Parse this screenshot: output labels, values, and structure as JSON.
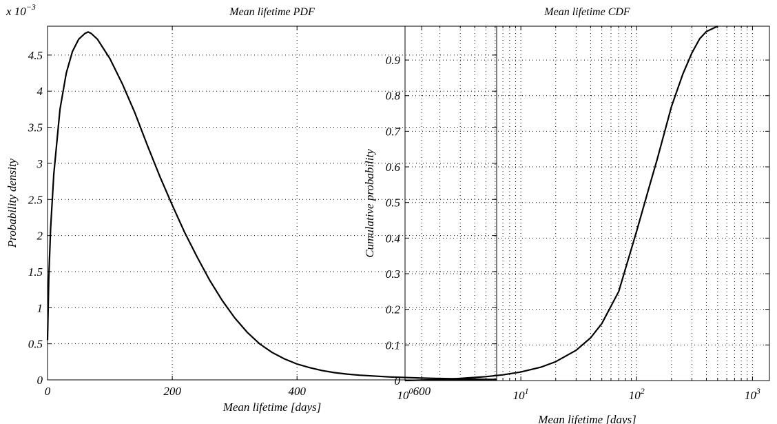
{
  "chart_data": [
    {
      "type": "line",
      "title": "Mean lifetime PDF",
      "xlabel": "Mean lifetime [days]",
      "ylabel": "Probability density",
      "y_multiplier": "x 10",
      "y_multiplier_exp": "−3",
      "xlim": [
        0,
        720
      ],
      "ylim": [
        0,
        4.9
      ],
      "xticks": [
        0,
        200,
        400,
        600
      ],
      "yticks": [
        0,
        0.5,
        1,
        1.5,
        2,
        2.5,
        3,
        3.5,
        4,
        4.5
      ],
      "ytick_labels": [
        "0",
        "0.5",
        "1",
        "1.5",
        "2",
        "2.5",
        "3",
        "3.5",
        "4",
        "4.5"
      ],
      "grid": true,
      "series": [
        {
          "x": [
            0,
            2,
            5,
            10,
            20,
            30,
            40,
            50,
            60,
            65,
            70,
            80,
            100,
            120,
            140,
            160,
            180,
            200,
            220,
            240,
            260,
            280,
            300,
            320,
            340,
            360,
            380,
            400,
            420,
            440,
            460,
            480,
            500,
            550,
            600,
            650,
            700,
            720
          ],
          "y": [
            0.55,
            1.4,
            2.1,
            2.85,
            3.75,
            4.25,
            4.55,
            4.72,
            4.8,
            4.82,
            4.8,
            4.72,
            4.45,
            4.1,
            3.7,
            3.25,
            2.82,
            2.42,
            2.04,
            1.7,
            1.38,
            1.1,
            0.86,
            0.66,
            0.5,
            0.38,
            0.29,
            0.22,
            0.17,
            0.13,
            0.1,
            0.08,
            0.065,
            0.04,
            0.025,
            0.015,
            0.008,
            0.005
          ]
        }
      ]
    },
    {
      "type": "line",
      "title": "Mean lifetime CDF",
      "xlabel": "Mean lifetime [days]",
      "ylabel": "Cumulative probability",
      "xscale": "log",
      "xlim": [
        1,
        1400
      ],
      "ylim": [
        0,
        0.995
      ],
      "xticks": [
        1,
        10,
        100,
        1000
      ],
      "xtick_labels": [
        {
          "base": "10",
          "exp": "0"
        },
        {
          "base": "10",
          "exp": "1"
        },
        {
          "base": "10",
          "exp": "2"
        },
        {
          "base": "10",
          "exp": "3"
        }
      ],
      "yticks": [
        0,
        0.1,
        0.2,
        0.3,
        0.4,
        0.5,
        0.6,
        0.7,
        0.8,
        0.9
      ],
      "ytick_labels": [
        "0",
        "0.1",
        "0.2",
        "0.3",
        "0.4",
        "0.5",
        "0.6",
        "0.7",
        "0.8",
        "0.9"
      ],
      "grid": true,
      "series": [
        {
          "x": [
            1,
            2,
            3,
            5,
            7,
            10,
            15,
            20,
            30,
            40,
            50,
            70,
            100,
            130,
            150,
            200,
            250,
            300,
            350,
            400,
            500
          ],
          "y": [
            0.0,
            0.003,
            0.006,
            0.011,
            0.016,
            0.024,
            0.038,
            0.053,
            0.085,
            0.12,
            0.16,
            0.25,
            0.42,
            0.55,
            0.62,
            0.77,
            0.86,
            0.92,
            0.96,
            0.98,
            0.995
          ]
        }
      ]
    }
  ]
}
